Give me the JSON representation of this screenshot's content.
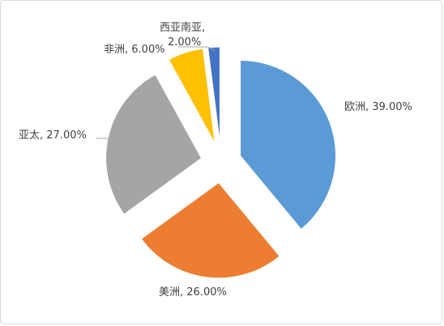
{
  "chart_data": {
    "type": "pie",
    "title": "",
    "legend": "none",
    "exploded": true,
    "categories": [
      "欧洲",
      "美洲",
      "亚太",
      "非洲",
      "西亚南亚"
    ],
    "values": [
      39.0,
      26.0,
      27.0,
      6.0,
      2.0
    ],
    "unit": "%",
    "data_labels": [
      "欧洲, 39.00%",
      "美洲, 26.00%",
      "亚太, 27.00%",
      "非洲, 6.00%",
      "西亚南亚, 2.00%"
    ],
    "colors": [
      "#5b9bd5",
      "#ed7d31",
      "#a5a5a5",
      "#ffc000",
      "#4472c4"
    ]
  }
}
